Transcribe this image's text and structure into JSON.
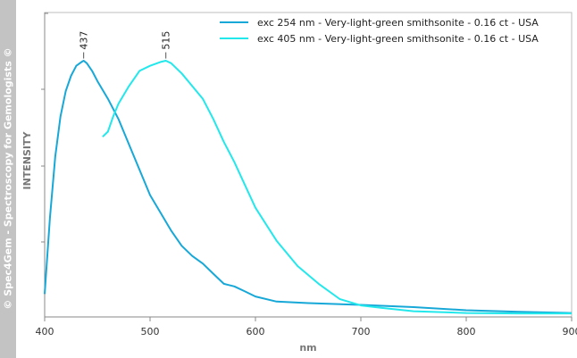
{
  "watermark": "© Spec4Gem - Spectroscopy for Gemologists ©",
  "chart_data": {
    "type": "line",
    "xlabel": "nm",
    "ylabel": "INTENSITY",
    "xlim": [
      400,
      900
    ],
    "ylim": [
      0,
      1
    ],
    "x_ticks": [
      400,
      500,
      600,
      700,
      800,
      900
    ],
    "x_tick_labels": [
      "400",
      "500",
      "600",
      "700",
      "800",
      "900"
    ],
    "y_ticks": [
      0.25,
      0.5,
      0.75,
      1.0
    ],
    "grid": false,
    "legend_position": "top-right",
    "peak_labels": [
      {
        "text": "437",
        "x": 437,
        "y": 0.998
      },
      {
        "text": "515",
        "x": 515,
        "y": 0.998
      }
    ],
    "series": [
      {
        "name": "exc 254 nm - Very-light-green smithsonite - 0.16 ct - USA",
        "color": "#17a8d8",
        "x": [
          400,
          405,
          410,
          415,
          420,
          425,
          430,
          435,
          437,
          440,
          445,
          450,
          460,
          470,
          480,
          490,
          500,
          510,
          520,
          530,
          540,
          550,
          560,
          570,
          580,
          590,
          600,
          620,
          650,
          700,
          750,
          800,
          850,
          900
        ],
        "y": [
          0.08,
          0.38,
          0.62,
          0.78,
          0.88,
          0.94,
          0.98,
          0.995,
          1.0,
          0.99,
          0.96,
          0.92,
          0.85,
          0.77,
          0.67,
          0.57,
          0.47,
          0.4,
          0.33,
          0.27,
          0.23,
          0.2,
          0.16,
          0.12,
          0.11,
          0.09,
          0.07,
          0.05,
          0.044,
          0.037,
          0.028,
          0.016,
          0.01,
          0.005
        ]
      },
      {
        "name": "exc 405 nm - Very-light-green smithsonite - 0.16 ct - USA",
        "color": "#22e8ec",
        "x": [
          455,
          460,
          465,
          470,
          480,
          490,
          500,
          510,
          515,
          520,
          530,
          540,
          550,
          560,
          570,
          580,
          590,
          600,
          620,
          640,
          660,
          680,
          700,
          720,
          750,
          800,
          850,
          900
        ],
        "y": [
          0.7,
          0.72,
          0.78,
          0.83,
          0.9,
          0.96,
          0.98,
          0.995,
          1.0,
          0.99,
          0.95,
          0.9,
          0.85,
          0.77,
          0.68,
          0.6,
          0.51,
          0.42,
          0.29,
          0.19,
          0.12,
          0.06,
          0.035,
          0.025,
          0.012,
          0.005,
          0.003,
          0.003
        ]
      }
    ]
  }
}
